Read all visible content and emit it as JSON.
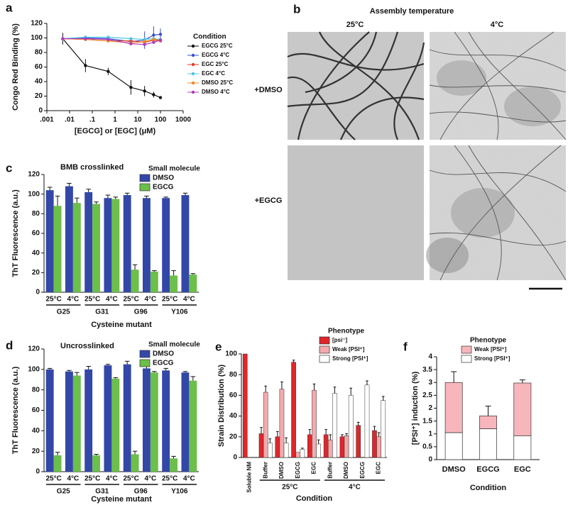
{
  "chart_data": [
    {
      "panel": "a",
      "type": "line",
      "ylabel": "Congo Red Binding (%)",
      "xlabel": "[EGCG] or [EGC] (μM)",
      "legend_title": "Condition",
      "log_x": true,
      "xlim": [
        0.001,
        1000
      ],
      "xticks": [
        {
          "value": 0.001,
          "label": ".001"
        },
        {
          "value": 0.01,
          "label": ".01"
        },
        {
          "value": 0.1,
          "label": ".1"
        },
        1,
        10,
        100,
        1000
      ],
      "ylim": [
        0,
        120
      ],
      "yticks": [
        0,
        20,
        40,
        60,
        80,
        100,
        120
      ],
      "x": [
        0.005,
        0.05,
        0.5,
        5,
        20,
        50,
        100
      ],
      "series": [
        {
          "name": "EGCG 25°C",
          "color": "#111111",
          "values": [
            99,
            62,
            54,
            32,
            27,
            22,
            18
          ],
          "errors": [
            8,
            9,
            5,
            10,
            7,
            4,
            2
          ]
        },
        {
          "name": "EGCG 4°C",
          "color": "#3b4fd0",
          "values": [
            99,
            100,
            99,
            95,
            97,
            104,
            105
          ],
          "errors": [
            3,
            3,
            3,
            5,
            12,
            12,
            8
          ]
        },
        {
          "name": "EGC 25°C",
          "color": "#e23a2a",
          "values": [
            99,
            98,
            96,
            96,
            94,
            97,
            96
          ]
        },
        {
          "name": "EGC 4°C",
          "color": "#4cc6e6",
          "values": [
            99,
            101,
            101,
            99,
            98,
            99,
            98
          ]
        },
        {
          "name": "DMSO 25°C",
          "color": "#f08a24",
          "values": [
            99,
            98,
            96,
            93,
            95,
            98,
            97
          ]
        },
        {
          "name": "DMSO 4°C",
          "color": "#b03cc0",
          "values": [
            99,
            99,
            98,
            92,
            91,
            94,
            97
          ]
        }
      ]
    },
    {
      "panel": "c",
      "type": "bar",
      "title": "BMB crosslinked",
      "ylabel": "ThT Fluorescence (a.u.)",
      "xlabel": "Cysteine mutant",
      "legend_title": "Small molecule",
      "categories": [
        "25°C",
        "4°C",
        "25°C",
        "4°C",
        "25°C",
        "4°C",
        "25°C",
        "4°C"
      ],
      "group_labels": [
        "G25",
        "G31",
        "G96",
        "Y106"
      ],
      "ylim": [
        0,
        120
      ],
      "yticks": [
        0,
        20,
        40,
        60,
        80,
        100,
        120
      ],
      "series": [
        {
          "name": "DMSO",
          "color": "#3347a8",
          "values": [
            104,
            108,
            102,
            96,
            99,
            96,
            96,
            99
          ],
          "errors": [
            3,
            3,
            3,
            3,
            2,
            2,
            1,
            2
          ]
        },
        {
          "name": "EGCG",
          "color": "#6cbf4a",
          "values": [
            88,
            91,
            90,
            95,
            23,
            21,
            17,
            18
          ],
          "errors": [
            10,
            5,
            2,
            2,
            5,
            1,
            5,
            1
          ]
        }
      ]
    },
    {
      "panel": "d",
      "type": "bar",
      "title": "Uncrosslinked",
      "ylabel": "ThT Fluorescence (a.u.)",
      "xlabel": "Cysteine mutant",
      "legend_title": "Small molecule",
      "categories": [
        "25°C",
        "4°C",
        "25°C",
        "4°C",
        "25°C",
        "4°C",
        "25°C",
        "4°C"
      ],
      "group_labels": [
        "G25",
        "G31",
        "G96",
        "Y106"
      ],
      "ylim": [
        0,
        120
      ],
      "yticks": [
        0,
        20,
        40,
        60,
        80,
        100,
        120
      ],
      "series": [
        {
          "name": "DMSO",
          "color": "#3347a8",
          "values": [
            100,
            98,
            100,
            104,
            105,
            101,
            99,
            97
          ],
          "errors": [
            1,
            1,
            3,
            1,
            3,
            2,
            2,
            1
          ]
        },
        {
          "name": "EGCG",
          "color": "#6cbf4a",
          "values": [
            16,
            94,
            16,
            91,
            17,
            97,
            13,
            89
          ],
          "errors": [
            3,
            3,
            1,
            1,
            3,
            1,
            2,
            4
          ]
        }
      ]
    },
    {
      "panel": "e",
      "type": "bar",
      "ylabel": "Strain Distribution (%)",
      "xlabel": "Condition",
      "legend_title": "Phenotype",
      "categories": [
        "Soluble NM",
        "Buffer",
        "DMSO",
        "EGCG",
        "EGC",
        "Buffer",
        "DMSO",
        "EGCG",
        "EGC"
      ],
      "group_labels": [
        "25°C",
        "4°C"
      ],
      "ylim": [
        0,
        100
      ],
      "yticks": [
        0,
        20,
        40,
        60,
        80,
        100
      ],
      "series": [
        {
          "name": "[psi⁻]",
          "color": "#e0262a",
          "values": [
            100,
            23,
            20,
            92,
            22,
            22,
            20,
            31,
            26
          ],
          "errors": [
            null,
            6,
            5,
            2,
            5,
            5,
            2,
            3,
            4
          ]
        },
        {
          "name": "Weak [PSI⁺]",
          "color": "#f4a9ad",
          "values": [
            null,
            63,
            66,
            5,
            65,
            17,
            21,
            null,
            20
          ],
          "errors": [
            null,
            6,
            7,
            null,
            6,
            5,
            2,
            null,
            4
          ]
        },
        {
          "name": "Strong [PSI⁺]",
          "color": "#ffffff",
          "values": [
            null,
            14,
            14,
            8,
            13,
            62,
            60,
            70,
            55
          ],
          "errors": [
            null,
            4,
            5,
            1,
            4,
            6,
            7,
            4,
            4
          ]
        }
      ]
    },
    {
      "panel": "f",
      "type": "stacked_bar",
      "ylabel": "[PSI⁺] induction (%)",
      "xlabel": "Condition",
      "legend_title": "Phenotype",
      "categories": [
        "DMSO",
        "EGCG",
        "EGC"
      ],
      "ylim": [
        0,
        4
      ],
      "yticks": [
        0,
        0.5,
        1,
        1.5,
        2,
        2.5,
        3,
        3.5,
        4
      ],
      "series": [
        {
          "name": "Strong [PSI⁺]",
          "color": "#ffffff",
          "values": [
            1.05,
            1.2,
            0.93
          ]
        },
        {
          "name": "Weak [PSI⁺]",
          "color": "#f7b6bb",
          "values": [
            1.95,
            0.5,
            2.05
          ],
          "errors": [
            0.42,
            0.38,
            0.12
          ]
        }
      ]
    }
  ],
  "micrograph": {
    "panel": "b",
    "title": "Assembly temperature",
    "columns": [
      "25°C",
      "4°C"
    ],
    "rows": [
      "+DMSO",
      "+EGCG"
    ]
  }
}
